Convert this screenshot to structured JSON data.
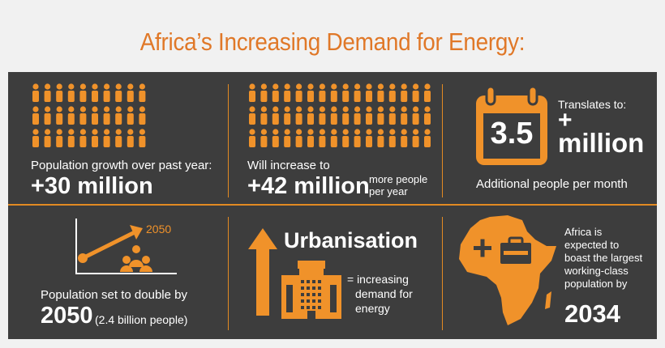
{
  "title": "Africa’s Increasing Demand for Energy:",
  "colors": {
    "accent": "#f0922a",
    "title": "#e07828",
    "panel": "#3d3d3d",
    "background": "#f1f1f1"
  },
  "cells": {
    "growth": {
      "icon": "people-grid-icon",
      "label": "Population growth over past year:",
      "value": "+30 million"
    },
    "increase": {
      "icon": "people-grid-icon",
      "label": "Will increase to",
      "value": "+42 million",
      "note_line1": "more people",
      "note_line2": "per year"
    },
    "monthly": {
      "icon": "calendar-icon",
      "calendar_value": "3.5",
      "translates": "Translates to:",
      "plus": "+",
      "million": "million",
      "caption": "Additional people per month"
    },
    "double": {
      "icon": "growth-chart-icon",
      "year_label": "2050",
      "caption": "Population set to double by",
      "year": "2050",
      "detail": "(2.4 billion people)"
    },
    "urban": {
      "icon": "building-arrow-icon",
      "heading": "Urbanisation",
      "line1": "= increasing",
      "line2": "demand for",
      "line3": "energy"
    },
    "workforce": {
      "icon": "africa-map-icon",
      "line1": "Africa is",
      "line2": "expected to",
      "line3": "boast the largest",
      "line4": "working-class",
      "line5": "population by",
      "year": "2034"
    }
  }
}
